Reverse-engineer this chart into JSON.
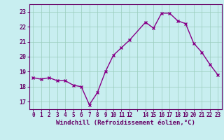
{
  "x": [
    0,
    1,
    2,
    3,
    4,
    5,
    6,
    7,
    8,
    9,
    10,
    11,
    12,
    14,
    15,
    16,
    17,
    18,
    19,
    20,
    21,
    22,
    23
  ],
  "y": [
    18.6,
    18.5,
    18.6,
    18.4,
    18.4,
    18.1,
    18.0,
    16.8,
    17.6,
    19.0,
    20.1,
    20.6,
    21.1,
    22.3,
    21.9,
    22.9,
    22.9,
    22.4,
    22.2,
    20.9,
    20.3,
    19.5,
    18.8
  ],
  "line_color": "#880088",
  "marker": "x",
  "marker_size": 3,
  "line_width": 1.0,
  "bg_color": "#c8eef0",
  "grid_color": "#99ccbb",
  "xlabel": "Windchill (Refroidissement éolien,°C)",
  "xlabel_color": "#660066",
  "tick_color": "#660066",
  "ylabel_ticks": [
    17,
    18,
    19,
    20,
    21,
    22,
    23
  ],
  "ylim": [
    16.5,
    23.5
  ],
  "xlim": [
    -0.5,
    23.5
  ],
  "xtick_all": [
    0,
    1,
    2,
    3,
    4,
    5,
    6,
    7,
    8,
    9,
    10,
    11,
    12,
    13,
    14,
    15,
    16,
    17,
    18,
    19,
    20,
    21,
    22,
    23
  ],
  "xtick_labels": [
    "0",
    "1",
    "2",
    "3",
    "4",
    "5",
    "6",
    "7",
    "8",
    "9",
    "10",
    "11",
    "12",
    "",
    "14",
    "15",
    "16",
    "17",
    "18",
    "19",
    "20",
    "21",
    "22",
    "23"
  ]
}
